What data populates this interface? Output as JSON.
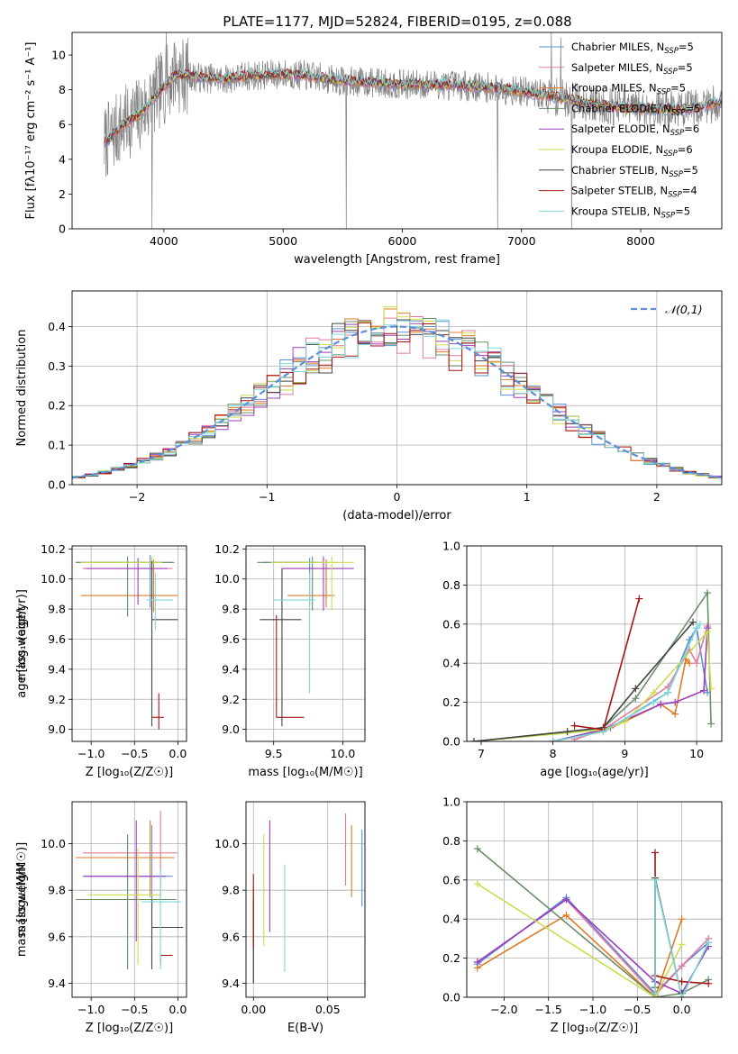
{
  "figure_title": "PLATE=1177, MJD=52824, FIBERID=0195, z=0.088",
  "model_colors": [
    "#5b8fd6",
    "#e07ba0",
    "#e07a24",
    "#6b8f6b",
    "#9b3fbf",
    "#cddc4e",
    "#444444",
    "#a81414",
    "#7fd8d8"
  ],
  "chart_data": [
    {
      "type": "line",
      "name": "spectrum",
      "xlabel": "wavelength [Angstrom, rest frame]",
      "ylabel": "Flux [fλ10⁻¹⁷ erg cm⁻² s⁻¹ A⁻¹]",
      "xlim": [
        3230,
        8680
      ],
      "ylim": [
        0,
        11.3
      ],
      "xticks": [
        4000,
        5000,
        6000,
        7000,
        8000
      ],
      "yticks": [
        0,
        2,
        4,
        6,
        8,
        10
      ],
      "legend_position": "top-right",
      "legend": [
        "Chabrier MILES, N_SSP=5",
        "Salpeter MILES, N_SSP=5",
        "Kroupa MILES, N_SSP=5",
        "Chabrier ELODIE, N_SSP=5",
        "Salpeter ELODIE, N_SSP=6",
        "Kroupa ELODIE, N_SSP=6",
        "Chabrier STELIB, N_SSP=5",
        "Salpeter STELIB, N_SSP=4",
        "Kroupa STELIB, N_SSP=5"
      ],
      "data_range": [
        3500,
        8680
      ],
      "continuum_points": [
        [
          3500,
          4.9
        ],
        [
          3600,
          5.6
        ],
        [
          3700,
          6.2
        ],
        [
          3800,
          6.6
        ],
        [
          3900,
          7.4
        ],
        [
          4000,
          8.2
        ],
        [
          4100,
          8.9
        ],
        [
          4300,
          8.7
        ],
        [
          4500,
          8.6
        ],
        [
          4700,
          8.8
        ],
        [
          5000,
          8.9
        ],
        [
          5200,
          8.8
        ],
        [
          5500,
          8.5
        ],
        [
          5800,
          8.4
        ],
        [
          6000,
          8.3
        ],
        [
          6300,
          8.3
        ],
        [
          6600,
          8.2
        ],
        [
          6900,
          8.0
        ],
        [
          7200,
          7.7
        ],
        [
          7500,
          7.3
        ],
        [
          7800,
          7.0
        ],
        [
          8100,
          6.9
        ],
        [
          8400,
          6.9
        ],
        [
          8680,
          7.3
        ]
      ],
      "spikes": [
        [
          3900,
          0
        ],
        [
          4020,
          11.3
        ],
        [
          4090,
          10.7
        ],
        [
          5530,
          0
        ],
        [
          6800,
          0
        ],
        [
          7250,
          11.3
        ],
        [
          7330,
          11.0
        ],
        [
          7420,
          0
        ]
      ],
      "noise_amplitude": 1.6
    },
    {
      "type": "line",
      "name": "residual-histogram",
      "xlabel": "(data-model)/error",
      "ylabel": "Normed distribution",
      "xlim": [
        -2.5,
        2.5
      ],
      "ylim": [
        0,
        0.49
      ],
      "xticks": [
        -2,
        -1,
        0,
        1,
        2
      ],
      "yticks": [
        0,
        0.1,
        0.2,
        0.3,
        0.4
      ],
      "grid": true,
      "legend_position": "top-right",
      "legend": [
        "𝒩(0,1)"
      ],
      "bin_width": 0.1,
      "peak_value": 0.4
    },
    {
      "type": "scatter",
      "name": "age-vs-metallicity",
      "xlabel": "Z [log₁₀(Z/Z☉)]",
      "ylabel": "age  [log₁₀(age/yr)]",
      "xlim": [
        -1.22,
        0.1
      ],
      "ylim": [
        8.92,
        10.22
      ],
      "xticks": [
        -1.0,
        -0.5,
        0.0
      ],
      "yticks": [
        9.0,
        9.2,
        9.4,
        9.6,
        9.8,
        10.0,
        10.2
      ],
      "grid": true,
      "points": [
        {
          "x": -0.32,
          "y": 10.11,
          "xerr": [
            0.86,
            0.28
          ],
          "yerr": [
            0.3,
            0.05
          ]
        },
        {
          "x": -0.3,
          "y": 10.07,
          "xerr": [
            0.8,
            0.24
          ],
          "yerr": [
            0.2,
            0.06
          ]
        },
        {
          "x": -0.28,
          "y": 9.89,
          "xerr": [
            0.84,
            0.28
          ],
          "yerr": [
            0.11,
            0.24
          ]
        },
        {
          "x": -0.58,
          "y": 10.11,
          "xerr": [
            0.6,
            0.52
          ],
          "yerr": [
            0.36,
            0.04
          ]
        },
        {
          "x": -0.46,
          "y": 10.07,
          "xerr": [
            0.6,
            0.34
          ],
          "yerr": [
            0.24,
            0.07
          ]
        },
        {
          "x": -0.3,
          "y": 10.11,
          "xerr": [
            0.82,
            0.12
          ],
          "yerr": [
            0.26,
            0.04
          ]
        },
        {
          "x": -0.3,
          "y": 9.73,
          "xerr": [
            0.0,
            0.3
          ],
          "yerr": [
            0.71,
            0.39
          ]
        },
        {
          "x": -0.22,
          "y": 9.08,
          "xerr": [
            0.08,
            0.06
          ],
          "yerr": [
            0.08,
            0.16
          ]
        },
        {
          "x": -0.26,
          "y": 9.86,
          "xerr": [
            0.1,
            0.2
          ],
          "yerr": [
            0.2,
            0.18
          ]
        }
      ]
    },
    {
      "type": "scatter",
      "name": "age-vs-mass",
      "xlabel": "mass [log₁₀(M/M☉)]",
      "ylabel": "",
      "xlim": [
        9.3,
        10.16
      ],
      "ylim": [
        8.92,
        10.22
      ],
      "xticks": [
        9.5,
        10.0
      ],
      "yticks": [
        9.0,
        9.2,
        9.4,
        9.6,
        9.8,
        10.0,
        10.2
      ],
      "grid": true,
      "points": [
        {
          "x": 9.76,
          "y": 10.11,
          "xerr": [
            0.34,
            0.06
          ],
          "yerr": [
            0.28,
            0.03
          ]
        },
        {
          "x": 9.88,
          "y": 10.07,
          "xerr": [
            0.32,
            0.1
          ],
          "yerr": [
            0.2,
            0.06
          ]
        },
        {
          "x": 9.88,
          "y": 9.89,
          "xerr": [
            0.28,
            0.06
          ],
          "yerr": [
            0.08,
            0.24
          ]
        },
        {
          "x": 9.78,
          "y": 10.11,
          "xerr": [
            0.4,
            0.08
          ],
          "yerr": [
            0.32,
            0.04
          ]
        },
        {
          "x": 9.86,
          "y": 10.07,
          "xerr": [
            0.3,
            0.22
          ],
          "yerr": [
            0.28,
            0.08
          ]
        },
        {
          "x": 9.92,
          "y": 10.11,
          "xerr": [
            0.44,
            0.16
          ],
          "yerr": [
            0.32,
            0.04
          ]
        },
        {
          "x": 9.56,
          "y": 9.73,
          "xerr": [
            0.16,
            0.14
          ],
          "yerr": [
            0.71,
            0.34
          ]
        },
        {
          "x": 9.52,
          "y": 9.08,
          "xerr": [
            0.0,
            0.2
          ],
          "yerr": [
            0.0,
            0.68
          ]
        },
        {
          "x": 9.76,
          "y": 9.86,
          "xerr": [
            0.26,
            0.04
          ],
          "yerr": [
            0.62,
            0.18
          ]
        }
      ]
    },
    {
      "type": "line",
      "name": "mass-weight-vs-age",
      "xlabel": "age  [log₁₀(age/yr)]",
      "ylabel": "mass weight",
      "xlim": [
        6.8,
        10.35
      ],
      "ylim": [
        0,
        1.0
      ],
      "xticks": [
        7,
        8,
        9,
        10
      ],
      "yticks": [
        0.0,
        0.2,
        0.4,
        0.6,
        0.8,
        1.0
      ],
      "grid": true,
      "series": [
        {
          "x": [
            8.0,
            8.8,
            9.6,
            9.9,
            10.0,
            10.15
          ],
          "y": [
            0.0,
            0.07,
            0.25,
            0.52,
            0.58,
            0.25
          ]
        },
        {
          "x": [
            8.3,
            8.7,
            9.6,
            9.9,
            10.0,
            10.15
          ],
          "y": [
            0.01,
            0.06,
            0.28,
            0.47,
            0.4,
            0.59
          ]
        },
        {
          "x": [
            8.0,
            8.7,
            9.5,
            9.7,
            9.85,
            9.9
          ],
          "y": [
            0.0,
            0.05,
            0.19,
            0.14,
            0.42,
            0.4
          ]
        },
        {
          "x": [
            6.9,
            8.2,
            8.7,
            9.15,
            10.15,
            10.2
          ],
          "y": [
            0.0,
            0.05,
            0.07,
            0.22,
            0.76,
            0.09
          ]
        },
        {
          "x": [
            8.0,
            8.7,
            9.5,
            9.7,
            10.1,
            10.15
          ],
          "y": [
            0.0,
            0.06,
            0.19,
            0.2,
            0.26,
            0.58
          ]
        },
        {
          "x": [
            6.9,
            8.7,
            9.0,
            9.4,
            10.15,
            10.2
          ],
          "y": [
            0.0,
            0.06,
            0.1,
            0.25,
            0.56,
            0.27
          ]
        },
        {
          "x": [
            6.9,
            8.2,
            8.7,
            9.15,
            9.95
          ],
          "y": [
            0.0,
            0.05,
            0.07,
            0.27,
            0.61
          ]
        },
        {
          "x": [
            8.3,
            8.7,
            9.2
          ],
          "y": [
            0.08,
            0.06,
            0.73
          ]
        },
        {
          "x": [
            8.0,
            8.7,
            9.4,
            9.6,
            10.0,
            10.05
          ],
          "y": [
            0.0,
            0.05,
            0.2,
            0.25,
            0.58,
            0.6
          ]
        }
      ]
    },
    {
      "type": "scatter",
      "name": "mass-vs-metallicity",
      "xlabel": "Z [log₁₀(Z/Z☉)]",
      "ylabel": "mass [log₁₀(M/M☉)]",
      "xlim": [
        -1.22,
        0.1
      ],
      "ylim": [
        9.34,
        10.18
      ],
      "xticks": [
        -1.0,
        -0.5,
        0.0
      ],
      "yticks": [
        9.4,
        9.6,
        9.8,
        10.0
      ],
      "grid": true,
      "points": [
        {
          "x": -0.3,
          "y": 9.86,
          "xerr": [
            0.8,
            0.24
          ],
          "yerr": [
            0.14,
            0.22
          ]
        },
        {
          "x": -0.2,
          "y": 9.96,
          "xerr": [
            0.9,
            0.2
          ],
          "yerr": [
            0.22,
            0.18
          ]
        },
        {
          "x": -0.32,
          "y": 9.94,
          "xerr": [
            0.86,
            0.28
          ],
          "yerr": [
            0.17,
            0.16
          ]
        },
        {
          "x": -0.58,
          "y": 9.76,
          "xerr": [
            0.6,
            0.56
          ],
          "yerr": [
            0.3,
            0.28
          ]
        },
        {
          "x": -0.48,
          "y": 9.86,
          "xerr": [
            0.6,
            0.34
          ],
          "yerr": [
            0.28,
            0.24
          ]
        },
        {
          "x": -0.46,
          "y": 9.78,
          "xerr": [
            0.58,
            0.26
          ],
          "yerr": [
            0.3,
            0.2
          ]
        },
        {
          "x": -0.3,
          "y": 9.64,
          "xerr": [
            0.0,
            0.36
          ],
          "yerr": [
            0.18,
            0.12
          ]
        },
        {
          "x": -0.2,
          "y": 9.52,
          "xerr": [
            0.0,
            0.14
          ],
          "yerr": [
            0.04,
            0.0
          ]
        },
        {
          "x": -0.2,
          "y": 9.75,
          "xerr": [
            0.22,
            0.24
          ],
          "yerr": [
            0.29,
            0.14
          ]
        }
      ]
    },
    {
      "type": "scatter",
      "name": "mass-vs-extinction",
      "xlabel": "E(B-V)",
      "ylabel": "",
      "xlim": [
        -0.005,
        0.075
      ],
      "ylim": [
        9.34,
        10.18
      ],
      "xticks": [
        0.0,
        0.05
      ],
      "yticks": [
        9.4,
        9.6,
        9.8,
        10.0
      ],
      "grid": true,
      "bars": [
        {
          "x": 0.073,
          "y0": 9.73,
          "y1": 10.06
        },
        {
          "x": 0.062,
          "y0": 9.82,
          "y1": 10.13
        },
        {
          "x": 0.066,
          "y0": 9.77,
          "y1": 10.08
        },
        {
          "x": 0.0,
          "y0": 9.4,
          "y1": 9.82
        },
        {
          "x": 0.011,
          "y0": 9.62,
          "y1": 10.1
        },
        {
          "x": 0.007,
          "y0": 9.56,
          "y1": 10.04
        },
        {
          "x": 0.0,
          "y0": 9.4,
          "y1": 9.76
        },
        {
          "x": 0.0,
          "y0": 9.55,
          "y1": 9.87
        },
        {
          "x": 0.021,
          "y0": 9.45,
          "y1": 9.91
        }
      ]
    },
    {
      "type": "line",
      "name": "mass-weight-vs-metallicity",
      "xlabel": "Z [log₁₀(Z/Z☉)]",
      "ylabel": "mass weight",
      "xlim": [
        -2.42,
        0.45
      ],
      "ylim": [
        0,
        1.0
      ],
      "xticks": [
        -2.0,
        -1.5,
        -1.0,
        -0.5,
        0.0
      ],
      "yticks": [
        0.0,
        0.2,
        0.4,
        0.6,
        0.8,
        1.0
      ],
      "grid": true,
      "series": [
        {
          "x": [
            -2.3,
            -1.3,
            -0.3,
            0.0,
            0.3
          ],
          "y": [
            0.17,
            0.51,
            0.02,
            0.16,
            0.28
          ]
        },
        {
          "x": [
            -2.3,
            -1.3,
            -0.3,
            0.0,
            0.3
          ],
          "y": [
            0.18,
            0.5,
            0.01,
            0.16,
            0.3
          ]
        },
        {
          "x": [
            -2.3,
            -1.3,
            -0.3,
            0.0
          ],
          "y": [
            0.15,
            0.42,
            0.0,
            0.4
          ]
        },
        {
          "x": [
            -2.3,
            -0.3,
            0.0,
            0.3
          ],
          "y": [
            0.76,
            0.0,
            0.02,
            0.09
          ]
        },
        {
          "x": [
            -2.3,
            -1.3,
            -0.3,
            0.0,
            0.3
          ],
          "y": [
            0.18,
            0.5,
            0.08,
            0.02,
            0.26
          ]
        },
        {
          "x": [
            -2.3,
            -0.3,
            0.0
          ],
          "y": [
            0.58,
            0.0,
            0.27
          ]
        },
        {
          "x": [
            -0.3,
            -0.3,
            0.0,
            0.0
          ],
          "y": [
            0.05,
            0.61,
            0.0,
            0.02
          ]
        },
        {
          "x": [
            -0.3,
            -0.3,
            0.0,
            0.3
          ],
          "y": [
            0.74,
            0.11,
            0.08,
            0.07
          ]
        },
        {
          "x": [
            -0.3,
            -0.3,
            0.0,
            0.3
          ],
          "y": [
            0.02,
            0.6,
            0.0,
            0.28
          ]
        }
      ]
    }
  ]
}
